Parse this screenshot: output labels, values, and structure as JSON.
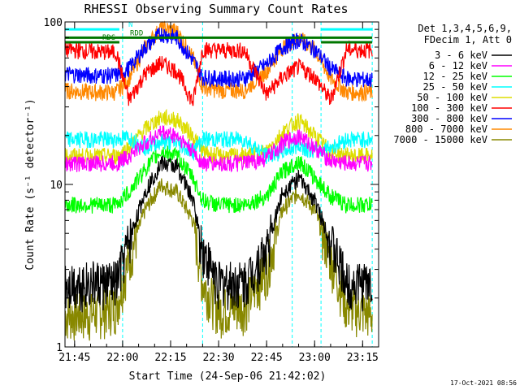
{
  "chart_data": {
    "type": "line",
    "title": "RHESSI Observing Summary Count Rates",
    "xlabel": "Start Time (24-Sep-06 21:42:02)",
    "ylabel": "Count Rate (s⁻¹ detector⁻¹)",
    "y_scale": "log",
    "ylim": [
      1,
      100
    ],
    "y_ticks": [
      "1",
      "10",
      "100"
    ],
    "xlim": [
      "21:42",
      "23:20"
    ],
    "x_ticks": [
      "21:45",
      "22:00",
      "22:15",
      "22:30",
      "22:45",
      "23:00",
      "23:15"
    ],
    "legend_header": [
      "Det 1,3,4,5,6,9,",
      "FDecim 1, Att 0"
    ],
    "legend_position": "top-right",
    "flags": [
      {
        "label": "N",
        "color": "#00ffff",
        "level": 90,
        "segments": [
          [
            "21:42",
            "21:59"
          ],
          [
            "23:02",
            "23:18"
          ]
        ]
      },
      {
        "label": "RDD",
        "color": "#007700",
        "level": 80,
        "segments": [
          [
            "21:42",
            "23:18"
          ]
        ]
      },
      {
        "label": "RDS",
        "color": "#007700",
        "level": 75,
        "segments": [
          [
            "21:42",
            "21:59"
          ],
          [
            "23:02",
            "23:18"
          ]
        ]
      }
    ],
    "annotation": "17-Oct-2021 08:56",
    "time_markers": [
      "21:42",
      "22:00",
      "22:25",
      "22:53",
      "23:02",
      "23:18"
    ],
    "series": [
      {
        "name": "3 - 6 keV",
        "color": "#000000",
        "x": [
          "21:42",
          "21:50",
          "21:58",
          "22:02",
          "22:07",
          "22:12",
          "22:17",
          "22:22",
          "22:25",
          "22:30",
          "22:38",
          "22:45",
          "22:50",
          "22:55",
          "23:00",
          "23:05",
          "23:10",
          "23:18"
        ],
        "y": [
          2.5,
          2.5,
          2.5,
          4.5,
          9,
          13.5,
          13,
          8,
          4,
          2.5,
          2.5,
          4,
          9,
          11,
          8,
          4.5,
          2.5,
          2.5
        ]
      },
      {
        "name": "6 - 12 keV",
        "color": "#ff00ff",
        "x": [
          "21:42",
          "21:50",
          "21:58",
          "22:02",
          "22:07",
          "22:12",
          "22:17",
          "22:22",
          "22:25",
          "22:30",
          "22:38",
          "22:45",
          "22:50",
          "22:55",
          "23:00",
          "23:05",
          "23:10",
          "23:18"
        ],
        "y": [
          13.5,
          13.5,
          13.5,
          15,
          18,
          21,
          20,
          16,
          13.5,
          13.5,
          13.5,
          14.5,
          18,
          20,
          17,
          14,
          13.5,
          13.5
        ]
      },
      {
        "name": "12 - 25 keV",
        "color": "#00ff00",
        "x": [
          "21:42",
          "21:50",
          "21:58",
          "22:02",
          "22:07",
          "22:12",
          "22:17",
          "22:22",
          "22:25",
          "22:30",
          "22:38",
          "22:45",
          "22:50",
          "22:55",
          "23:00",
          "23:05",
          "23:10",
          "23:18"
        ],
        "y": [
          7.5,
          7.5,
          7.5,
          9,
          12.5,
          16,
          15,
          11,
          8,
          7.5,
          7.5,
          8.5,
          12,
          14,
          11,
          8.5,
          7.5,
          7.5
        ]
      },
      {
        "name": "25 - 50 keV",
        "color": "#00ffff",
        "x": [
          "21:42",
          "21:50",
          "21:58",
          "22:02",
          "22:07",
          "22:12",
          "22:17",
          "22:22",
          "22:25",
          "22:30",
          "22:38",
          "22:45",
          "22:50",
          "22:55",
          "23:00",
          "23:05",
          "23:10",
          "23:18"
        ],
        "y": [
          19,
          19,
          19,
          19.5,
          17,
          18.5,
          18,
          16,
          19,
          19,
          19,
          15,
          16,
          17.5,
          16,
          17,
          19,
          19
        ]
      },
      {
        "name": "50 - 100 keV",
        "color": "#dddd00",
        "x": [
          "21:42",
          "21:50",
          "21:58",
          "22:02",
          "22:07",
          "22:12",
          "22:17",
          "22:22",
          "22:25",
          "22:30",
          "22:38",
          "22:45",
          "22:50",
          "22:55",
          "23:00",
          "23:05",
          "23:10",
          "23:18"
        ],
        "y": [
          15,
          15,
          15,
          17,
          22,
          26,
          25,
          20,
          16,
          15,
          15,
          16,
          21,
          25,
          20,
          16,
          15,
          15
        ]
      },
      {
        "name": "100 - 300 keV",
        "color": "#ff0000",
        "x": [
          "21:42",
          "21:50",
          "21:58",
          "22:02",
          "22:07",
          "22:12",
          "22:17",
          "22:22",
          "22:25",
          "22:30",
          "22:38",
          "22:45",
          "22:50",
          "22:55",
          "23:00",
          "23:05",
          "23:10",
          "23:18"
        ],
        "y": [
          68,
          66,
          65,
          33,
          48,
          56,
          50,
          32,
          68,
          67,
          67,
          36,
          46,
          53,
          46,
          33,
          68,
          67
        ]
      },
      {
        "name": "300 - 800 keV",
        "color": "#0000ff",
        "x": [
          "21:42",
          "21:50",
          "21:58",
          "22:02",
          "22:07",
          "22:12",
          "22:17",
          "22:22",
          "22:25",
          "22:30",
          "22:38",
          "22:45",
          "22:50",
          "22:55",
          "23:00",
          "23:05",
          "23:10",
          "23:18"
        ],
        "y": [
          48,
          47,
          47,
          52,
          70,
          85,
          80,
          58,
          46,
          45,
          45,
          55,
          70,
          78,
          68,
          52,
          45,
          44
        ]
      },
      {
        "name": "800 - 7000 keV",
        "color": "#ff8800",
        "x": [
          "21:42",
          "21:50",
          "21:58",
          "22:02",
          "22:07",
          "22:12",
          "22:17",
          "22:22",
          "22:25",
          "22:30",
          "22:38",
          "22:45",
          "22:50",
          "22:55",
          "23:00",
          "23:05",
          "23:10",
          "23:18"
        ],
        "y": [
          38,
          37,
          37,
          45,
          70,
          92,
          88,
          60,
          40,
          38,
          38,
          50,
          70,
          80,
          68,
          45,
          37,
          37
        ]
      },
      {
        "name": "7000 - 15000 keV",
        "color": "#888800",
        "x": [
          "21:42",
          "21:50",
          "21:58",
          "22:02",
          "22:07",
          "22:12",
          "22:17",
          "22:22",
          "22:25",
          "22:30",
          "22:38",
          "22:45",
          "22:50",
          "22:55",
          "23:00",
          "23:05",
          "23:10",
          "23:18"
        ],
        "y": [
          1.6,
          1.6,
          1.8,
          3.5,
          7,
          10,
          9,
          6,
          2.5,
          1.7,
          1.8,
          3,
          7,
          9,
          7,
          3.5,
          1.8,
          1.6
        ]
      }
    ]
  }
}
